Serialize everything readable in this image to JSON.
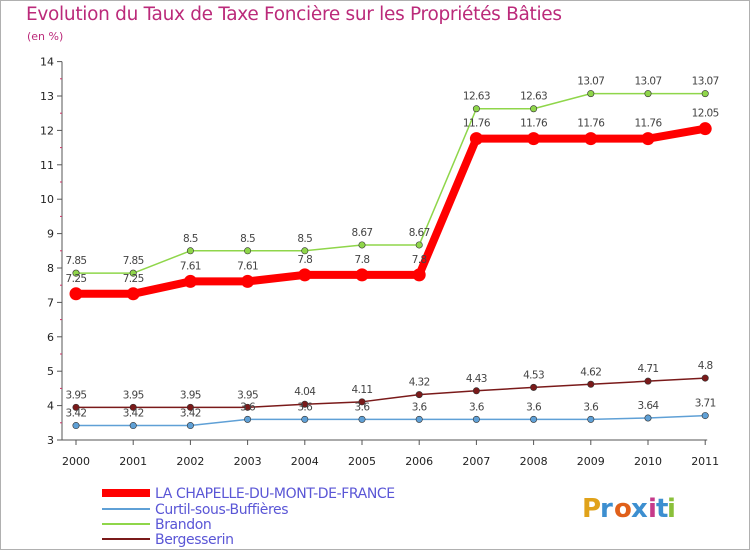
{
  "header": {
    "title": "Evolution du Taux de Taxe Foncière sur les Propriétés Bâties",
    "unit": "(en %)"
  },
  "logo": {
    "text": "Proxiti",
    "colors": [
      "#e0a21a",
      "#3d8fd0",
      "#e0601a",
      "#3d8fd0",
      "#c63a8a",
      "#3d8fd0",
      "#8ac03a"
    ]
  },
  "chart_data": {
    "type": "line",
    "title": "Evolution du Taux de Taxe Foncière sur les Propriétés Bâties",
    "ylabel": "(en %)",
    "xlabel": "",
    "categories": [
      "2000",
      "2001",
      "2002",
      "2003",
      "2004",
      "2005",
      "2006",
      "2007",
      "2008",
      "2009",
      "2010",
      "2011"
    ],
    "ylim": [
      3,
      14
    ],
    "yticks": [
      3,
      4,
      5,
      6,
      7,
      8,
      9,
      10,
      11,
      12,
      13,
      14
    ],
    "grid": false,
    "series": [
      {
        "name": "LA CHAPELLE-DU-MONT-DE-FRANCE",
        "color": "#ff0000",
        "emphasis": true,
        "values": [
          7.25,
          7.25,
          7.61,
          7.61,
          7.8,
          7.8,
          7.8,
          11.76,
          11.76,
          11.76,
          11.76,
          12.05
        ],
        "labels": [
          "7.25",
          "7.25",
          "7.61",
          "7.61",
          "7.8",
          "7.8",
          "7.8",
          "11.76",
          "11.76",
          "11.76",
          "11.76",
          "12.05"
        ]
      },
      {
        "name": "Curtil-sous-Buffières",
        "color": "#5fa0d6",
        "values": [
          3.42,
          3.42,
          3.42,
          3.6,
          3.6,
          3.6,
          3.6,
          3.6,
          3.6,
          3.6,
          3.64,
          3.71
        ],
        "labels": [
          "3.42",
          "3.42",
          "3.42",
          "3.6",
          "3.6",
          "3.6",
          "3.6",
          "3.6",
          "3.6",
          "3.6",
          "3.64",
          "3.71"
        ]
      },
      {
        "name": "Brandon",
        "color": "#8fd64a",
        "values": [
          7.85,
          7.85,
          8.5,
          8.5,
          8.5,
          8.67,
          8.67,
          12.63,
          12.63,
          13.07,
          13.07,
          13.07
        ],
        "labels": [
          "7.85",
          "7.85",
          "8.5",
          "8.5",
          "8.5",
          "8.67",
          "8.67",
          "12.63",
          "12.63",
          "13.07",
          "13.07",
          "13.07"
        ]
      },
      {
        "name": "Bergesserin",
        "color": "#7a1a1a",
        "values": [
          3.95,
          3.95,
          3.95,
          3.95,
          4.04,
          4.11,
          4.32,
          4.43,
          4.53,
          4.62,
          4.71,
          4.8
        ],
        "labels": [
          "3.95",
          "3.95",
          "3.95",
          "3.95",
          "4.04",
          "4.11",
          "4.32",
          "4.43",
          "4.53",
          "4.62",
          "4.71",
          "4.8"
        ]
      }
    ]
  }
}
